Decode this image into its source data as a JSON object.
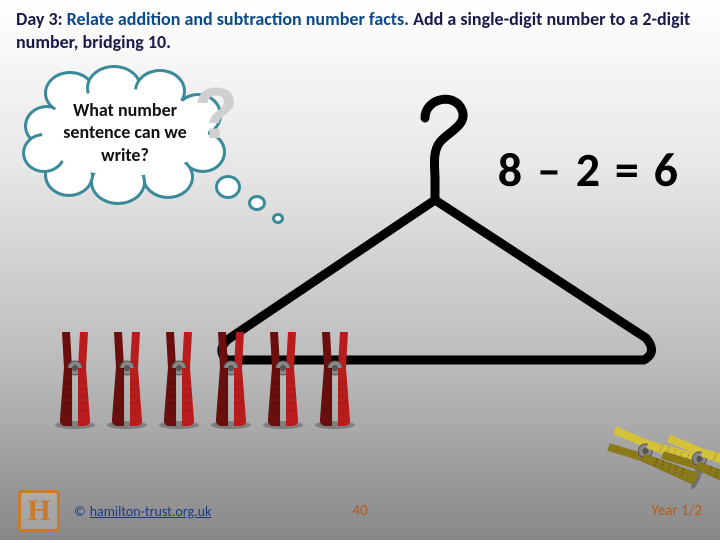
{
  "header": {
    "day": "Day 3:",
    "topic": "Relate addition and subtraction number facts.",
    "task": "Add a single-digit number to a 2-digit number, bridging 10."
  },
  "cloud": {
    "text": "What number sentence can we write?",
    "qmark": "?",
    "border_color": "#3a8a9a"
  },
  "equation": {
    "text": "8 – 2 = 6"
  },
  "hanger": {
    "stroke": "#000000",
    "stroke_width": 9
  },
  "pegs": {
    "red": {
      "count": 6,
      "fill": "#b81c1c",
      "shadow": "#6a0e0e"
    },
    "yellow": {
      "count": 2,
      "fill": "#d4c23a",
      "shadow": "#8a7a1a",
      "rotation": -70
    }
  },
  "footer": {
    "logo": "H",
    "copyright_symbol": "©",
    "copyright": "hamilton-trust.org.uk",
    "page": "40",
    "year": "Year 1/2"
  },
  "colors": {
    "header_dark": "#1a1a4a",
    "header_blue": "#0a4a8a",
    "footer_orange": "#b85a1a",
    "footer_link": "#1a3a8a"
  }
}
